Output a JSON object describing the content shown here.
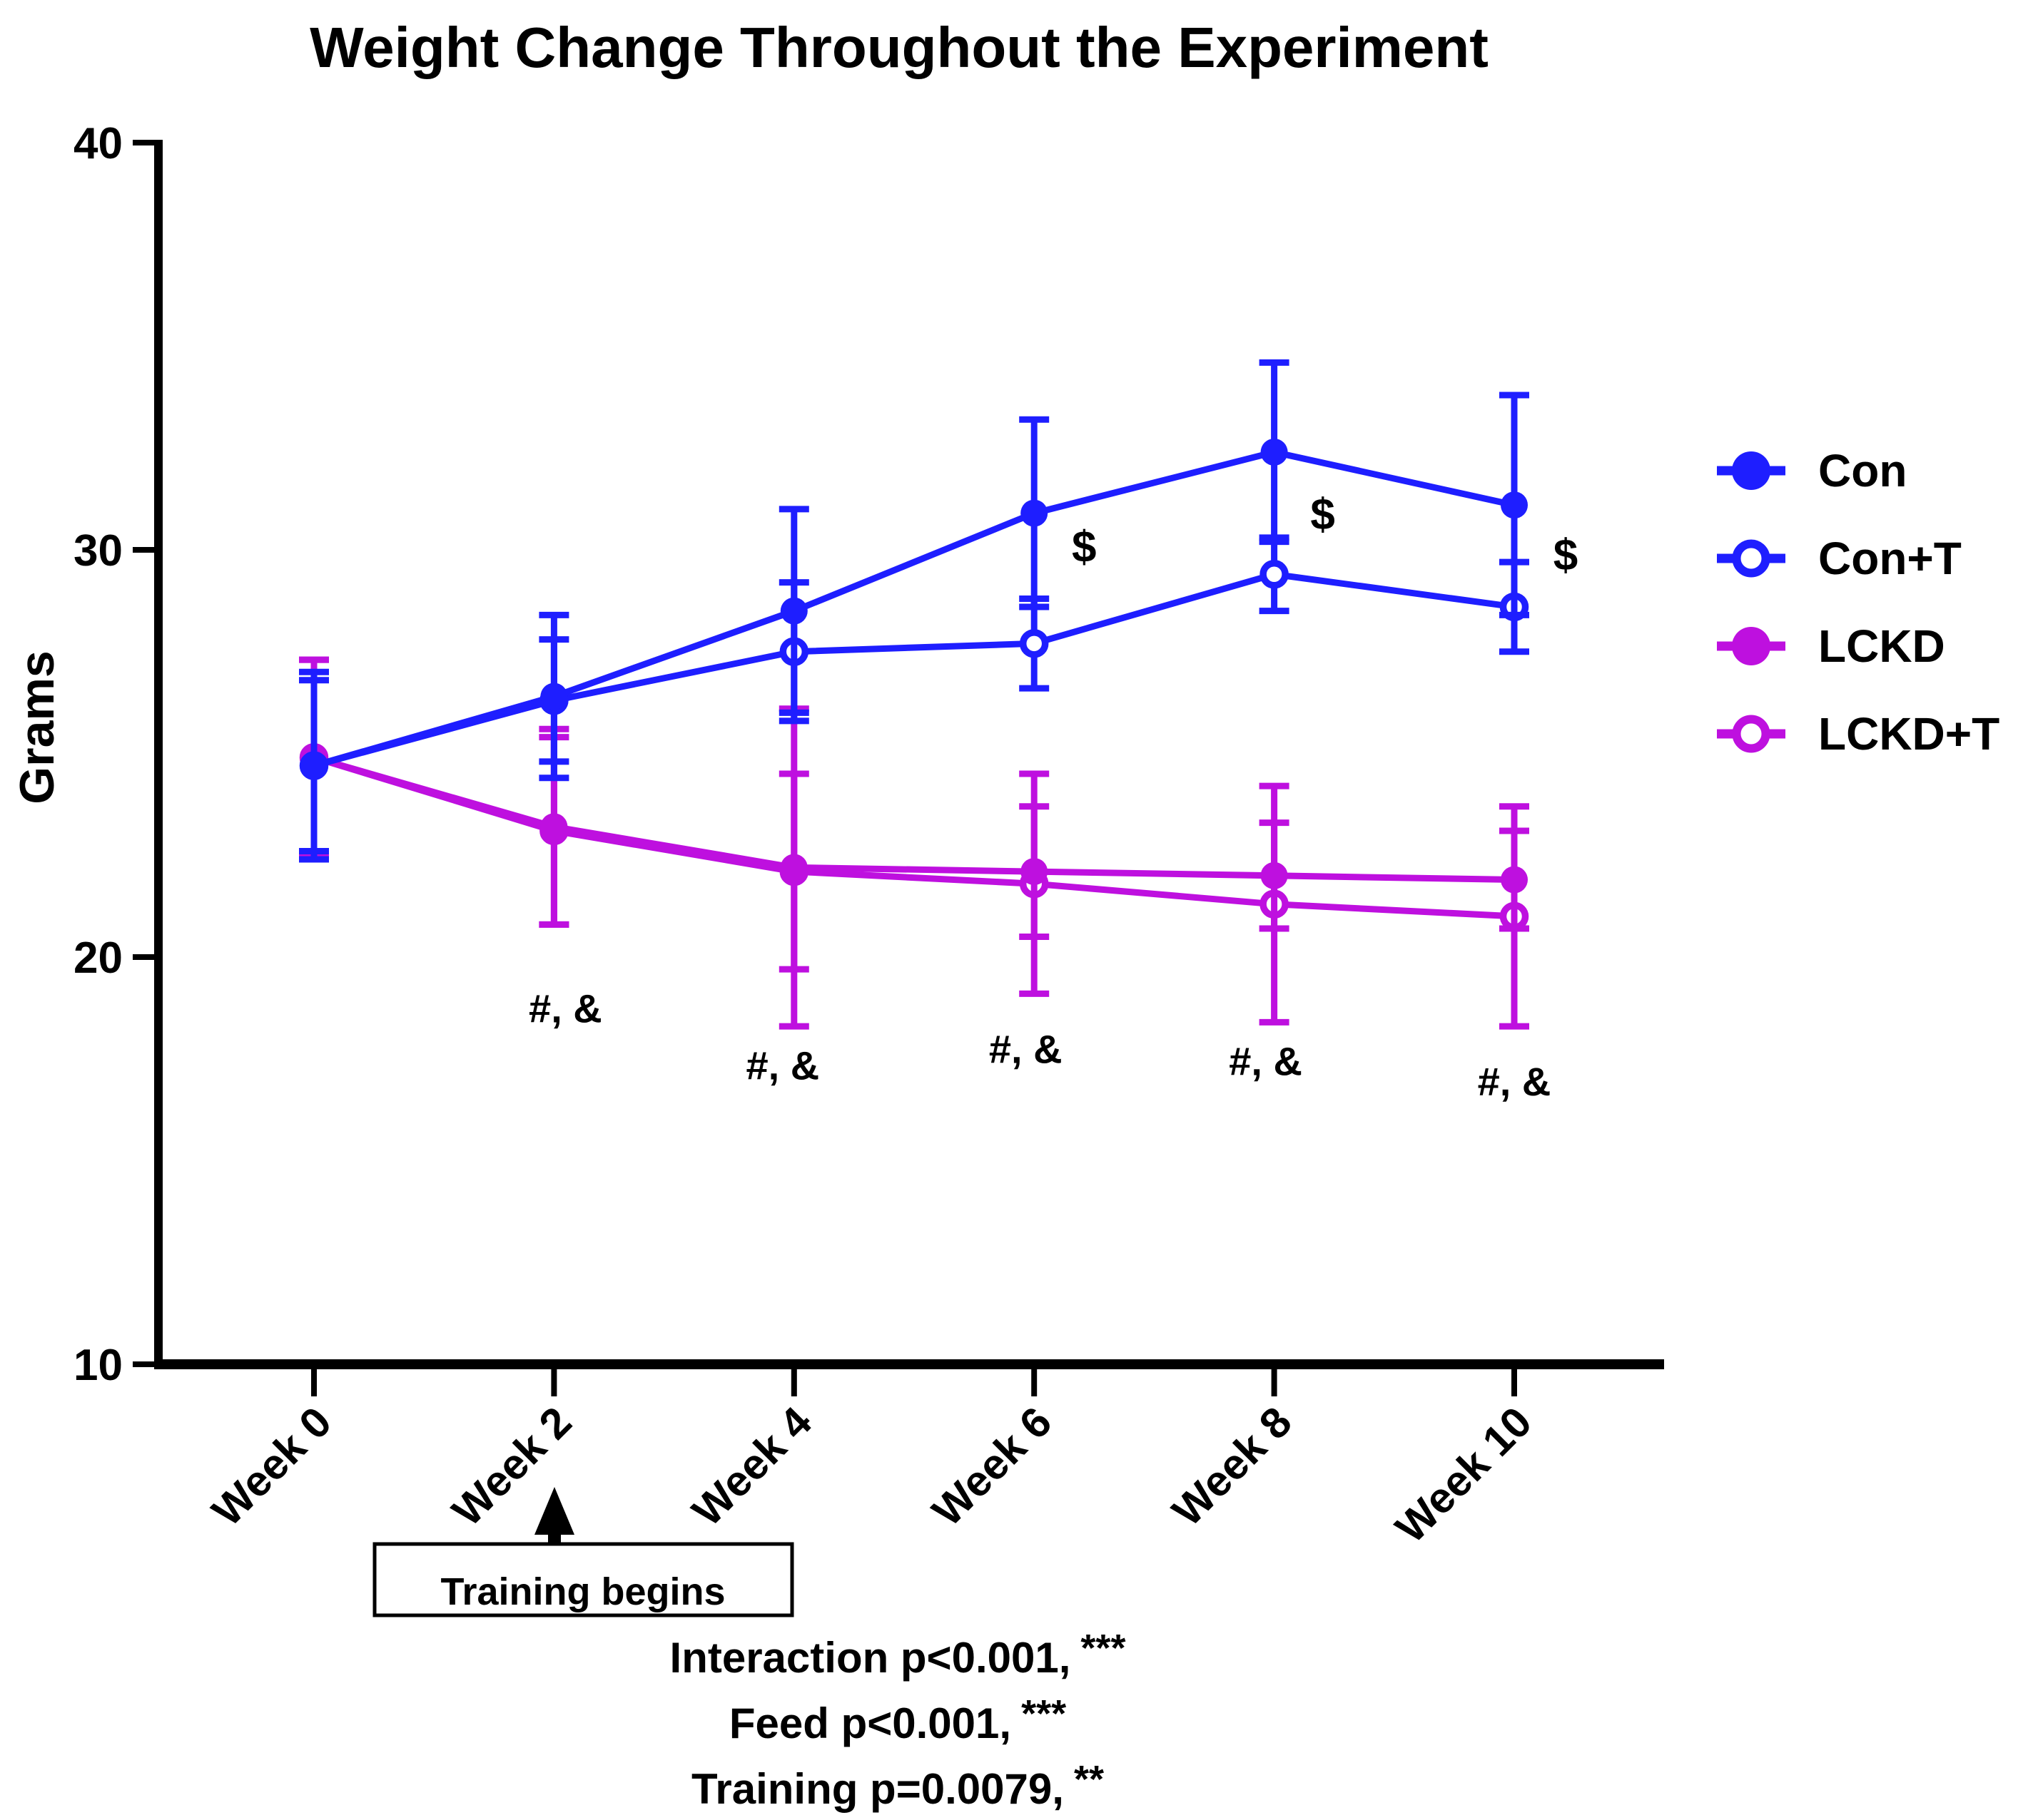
{
  "chart_data": {
    "type": "line",
    "title": "Weight Change Throughout the Experiment",
    "xlabel": "",
    "ylabel": "Grams",
    "ylim": [
      10,
      40
    ],
    "yticks": [
      40,
      30,
      20,
      10
    ],
    "grid": false,
    "legend_position": "right",
    "categories": [
      "Week 0",
      "Week 2",
      "Week 4",
      "Week 6",
      "Week 8",
      "Week 10"
    ],
    "series": [
      {
        "name": "Con",
        "color": "#1E1EFF",
        "marker": "filled-circle",
        "values": [
          24.7,
          26.4,
          28.5,
          30.9,
          32.4,
          31.1
        ],
        "errors": [
          2.3,
          2.0,
          2.5,
          2.3,
          2.2,
          2.7
        ]
      },
      {
        "name": "Con+T",
        "color": "#1E1EFF",
        "marker": "open-circle",
        "values": [
          24.7,
          26.3,
          27.5,
          27.7,
          29.4,
          28.6
        ],
        "errors": [
          2.1,
          1.5,
          1.7,
          1.1,
          0.9,
          1.1
        ]
      },
      {
        "name": "LCKD",
        "color": "#BE10DF",
        "marker": "filled-circle",
        "values": [
          24.9,
          23.2,
          22.2,
          22.1,
          22.0,
          21.9
        ],
        "errors": [
          2.4,
          2.4,
          3.9,
          1.6,
          1.3,
          1.2
        ]
      },
      {
        "name": "LCKD+T",
        "color": "#BE10DF",
        "marker": "open-circle",
        "values": [
          24.9,
          23.1,
          22.1,
          21.8,
          21.3,
          21.0
        ],
        "errors": [
          2.4,
          2.3,
          2.4,
          2.7,
          2.9,
          2.7
        ]
      }
    ],
    "annotations": {
      "dollar": {
        "symbol": "$",
        "points": [
          {
            "category": "Week 6",
            "grams": 29.7,
            "dx": 70
          },
          {
            "category": "Week 8",
            "grams": 30.5,
            "dx": 68
          },
          {
            "category": "Week 10",
            "grams": 29.5,
            "dx": 72
          }
        ]
      },
      "hash_amp": {
        "symbol": "#, &",
        "points": [
          {
            "category": "Week 2",
            "grams": 18.4,
            "dx": 16
          },
          {
            "category": "Week 4",
            "grams": 17.0,
            "dx": -16
          },
          {
            "category": "Week 6",
            "grams": 17.4,
            "dx": -12
          },
          {
            "category": "Week 8",
            "grams": 17.1,
            "dx": -12
          },
          {
            "category": "Week 10",
            "grams": 16.6,
            "dx": 0
          }
        ]
      },
      "training": {
        "label": "Training begins",
        "arrow_at": "Week 2"
      },
      "stats": [
        {
          "label": "Interaction p<0.001,",
          "stars": "***"
        },
        {
          "label": "Feed  p<0.001,",
          "stars": "***"
        },
        {
          "label": "Training p=0.0079,",
          "stars": "**"
        }
      ]
    }
  }
}
